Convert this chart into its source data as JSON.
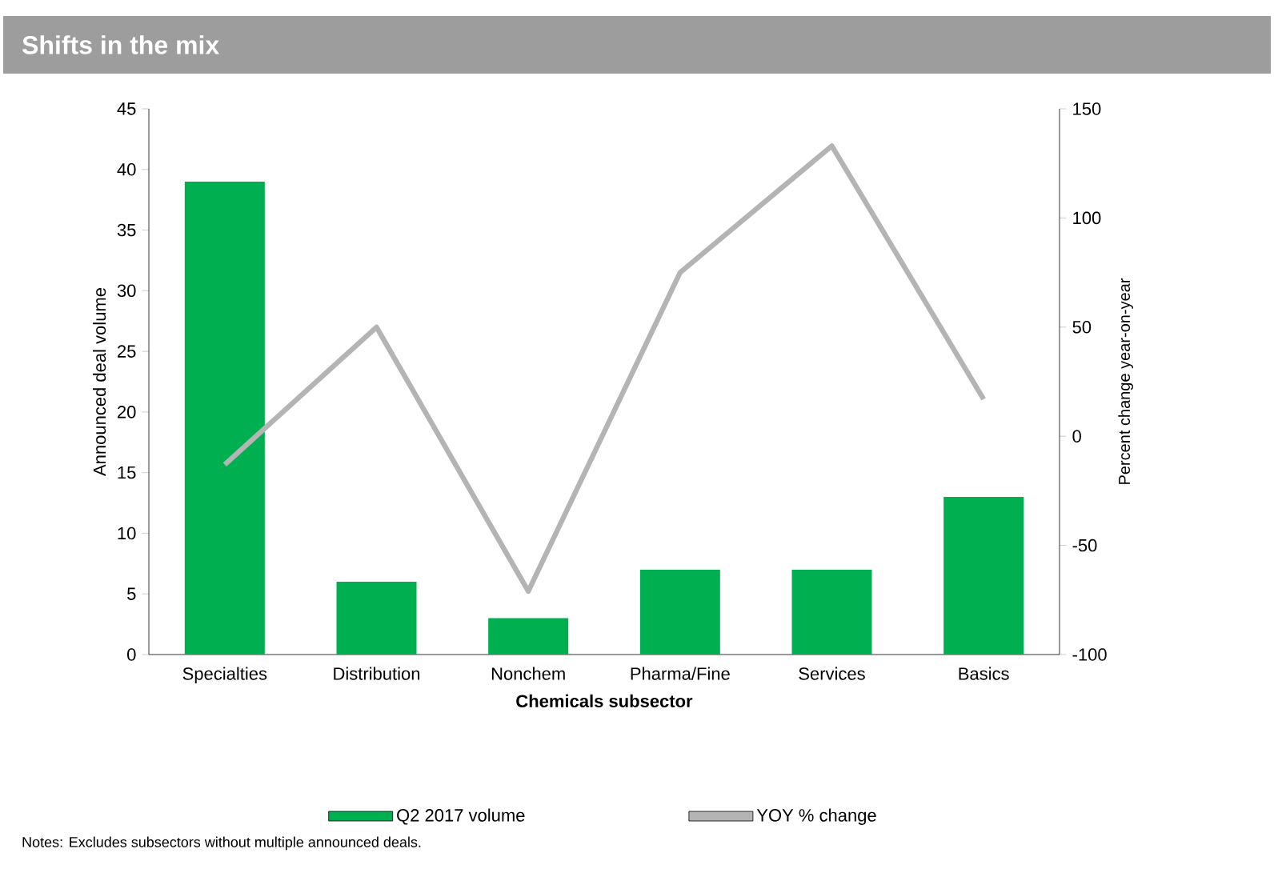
{
  "chart_data": {
    "type": "bar",
    "title": "Shifts in the mix",
    "categories": [
      "Specialties",
      "Distribution",
      "Nonchem",
      "Pharma/Fine",
      "Services",
      "Basics"
    ],
    "xlabel": "Chemicals subsector",
    "ylabel": "Announced deal volume",
    "y2label": "Percent change year-on-year",
    "series": [
      {
        "name": "Q2 2017 volume",
        "color": "#00b050",
        "values": [
          39,
          6,
          3,
          7,
          7,
          13
        ]
      },
      {
        "name": "YOY % change",
        "type": "line",
        "axis": "y2",
        "color": "#b4b4b4",
        "values": [
          -13,
          50,
          -71,
          75,
          133,
          17
        ]
      }
    ],
    "ylim": [
      0,
      45
    ],
    "yticks": [
      0,
      5,
      10,
      15,
      20,
      25,
      30,
      35,
      40,
      45
    ],
    "y2lim": [
      -100,
      150
    ],
    "y2ticks": [
      -100,
      -50,
      0,
      50,
      100,
      150
    ],
    "legend": "bottom",
    "annotations": [
      "Notes: Excludes subsectors without multiple announced deals."
    ]
  }
}
